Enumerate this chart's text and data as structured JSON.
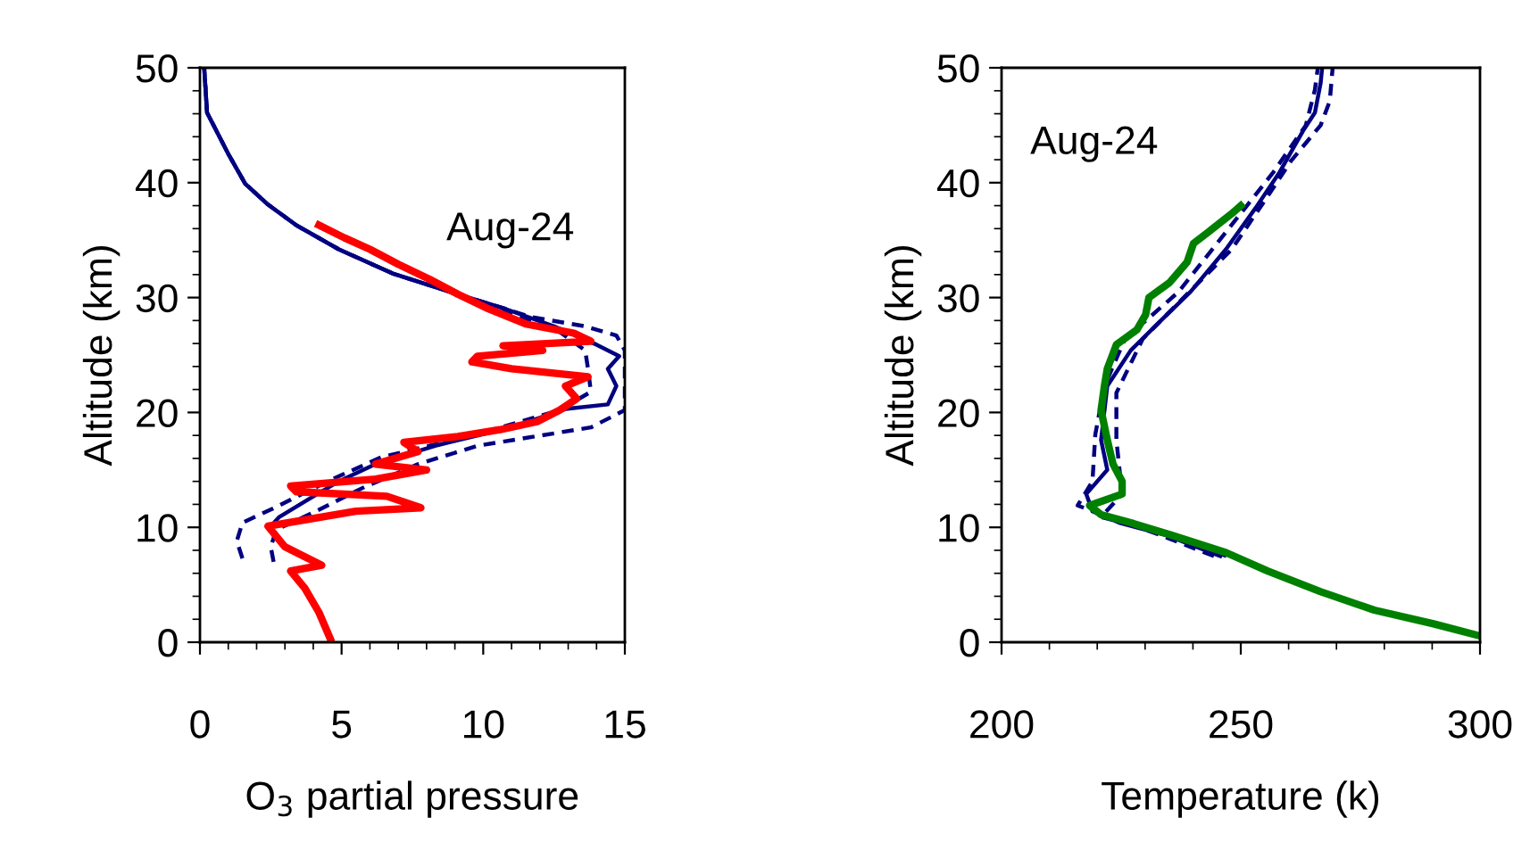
{
  "chart_data": [
    {
      "type": "line",
      "xlabel": "O$_{3}$ partial pressure",
      "ylabel": "Altitude (km)",
      "annotations": [
        "Aug-24"
      ],
      "xlim": [
        0,
        15
      ],
      "xticks": [
        0,
        5,
        10,
        15
      ],
      "ylim": [
        0,
        50
      ],
      "yticks": [
        0,
        10,
        20,
        30,
        40,
        50
      ],
      "grid": false,
      "series": [
        {
          "color": "#000080",
          "line_style": "dashed",
          "x": [
            2.6,
            2.5,
            2.7,
            4.1,
            5.8,
            7.7,
            9.8,
            13.8,
            15.0,
            15.0,
            14.7,
            13.6,
            11.7,
            10.8,
            8.7,
            6.8,
            4.9,
            3.4,
            2.4,
            1.6,
            1.0,
            0.25,
            0.15
          ],
          "values": [
            7.0,
            8.3,
            9.8,
            11.4,
            13.5,
            15.5,
            17.1,
            18.7,
            20.2,
            25.4,
            26.7,
            27.5,
            28.3,
            29.0,
            30.6,
            32.1,
            34.2,
            36.3,
            38.1,
            39.9,
            42.5,
            46.1,
            50
          ]
        },
        {
          "color": "#000080",
          "line_style": "dashed",
          "x": [
            1.5,
            1.3,
            1.5,
            2.8,
            4.5,
            6.4,
            9.8,
            12.7,
            13.8,
            13.7,
            13.6,
            12.7,
            11.0,
            8.7,
            6.8,
            4.9,
            3.4,
            2.4,
            1.6,
            1.0,
            0.25,
            0.15
          ],
          "values": [
            7.3,
            8.8,
            10.4,
            11.9,
            14.0,
            16.1,
            18.1,
            20.2,
            21.8,
            23.8,
            25.4,
            27.0,
            28.5,
            30.6,
            32.1,
            34.2,
            36.3,
            38.1,
            39.9,
            42.5,
            46.1,
            50
          ]
        },
        {
          "color": "#000080",
          "line_style": "solid",
          "x": [
            2.5,
            2.8,
            3.8,
            4.9,
            6.2,
            8.3,
            11.0,
            12.9,
            14.4,
            14.7,
            14.4,
            14.8,
            14.0,
            12.5,
            10.8,
            8.7,
            6.8,
            4.9,
            3.4,
            2.4,
            1.6,
            1.0,
            0.25,
            0.15
          ],
          "values": [
            10.1,
            10.9,
            12.4,
            14.0,
            15.5,
            17.1,
            18.7,
            20.3,
            20.7,
            22.3,
            23.8,
            24.9,
            25.9,
            27.5,
            29.0,
            30.6,
            32.1,
            34.2,
            36.3,
            38.1,
            39.9,
            42.5,
            46.1,
            50
          ]
        },
        {
          "color": "#ff0000",
          "line_style": "solid",
          "x": [
            4.6,
            4.2,
            3.7,
            3.2,
            4.3,
            3.0,
            2.4,
            5.5,
            7.8,
            6.6,
            3.4,
            3.2,
            6.2,
            8.0,
            6.2,
            7.7,
            7.2,
            9.1,
            10.6,
            11.9,
            12.7,
            13.3,
            12.9,
            13.7,
            11.0,
            9.6,
            9.8,
            12.1,
            10.7,
            13.8,
            13.2,
            11.5,
            10.2,
            9.1,
            8.1,
            7.0,
            6.0,
            5.1,
            4.2
          ],
          "values": [
            0.3,
            2.6,
            4.7,
            6.2,
            6.7,
            8.3,
            10.1,
            11.4,
            11.7,
            12.7,
            13.1,
            13.6,
            14.2,
            15.0,
            15.5,
            16.6,
            17.4,
            17.9,
            18.5,
            19.2,
            20.2,
            21.2,
            22.3,
            23.1,
            23.8,
            24.4,
            24.9,
            25.4,
            25.8,
            26.2,
            26.9,
            27.7,
            29.0,
            30.3,
            31.6,
            32.9,
            34.2,
            35.2,
            36.3
          ]
        }
      ]
    },
    {
      "type": "line",
      "xlabel": "Temperature (k)",
      "ylabel": "Altitude (km)",
      "annotations": [
        "Aug-24"
      ],
      "xlim": [
        200,
        300
      ],
      "xticks": [
        200,
        250,
        300
      ],
      "ylim": [
        0,
        50
      ],
      "yticks": [
        0,
        10,
        20,
        30,
        40,
        50
      ],
      "grid": false,
      "series": [
        {
          "color": "#000080",
          "line_style": "dashed",
          "x": [
            247.0,
            235.7,
            220.8,
            225.2,
            224.0,
            224.0,
            229.5,
            235.7,
            248.1,
            255.6,
            260.5,
            266.7,
            268.6,
            269.2
          ],
          "values": [
            7.5,
            9.3,
            10.9,
            12.9,
            17.6,
            21.7,
            26.4,
            29.0,
            34.2,
            38.8,
            41.9,
            45.0,
            47.1,
            50
          ]
        },
        {
          "color": "#000080",
          "line_style": "dashed",
          "x": [
            244.4,
            233.3,
            215.9,
            219.0,
            219.6,
            221.5,
            225.8,
            237.0,
            246.9,
            256.8,
            263.6,
            265.5,
            266.1
          ],
          "values": [
            7.5,
            9.3,
            11.9,
            14.0,
            18.1,
            22.3,
            26.4,
            30.5,
            35.7,
            40.9,
            45.0,
            48.1,
            50
          ]
        },
        {
          "color": "#000080",
          "line_style": "solid",
          "x": [
            245.7,
            234.5,
            224.6,
            219.0,
            217.7,
            222.1,
            220.8,
            222.1,
            227.0,
            233.3,
            239.5,
            246.9,
            253.1,
            258.1,
            263.0,
            265.5,
            266.7,
            267.0
          ],
          "values": [
            7.5,
            9.3,
            10.4,
            11.4,
            12.9,
            15.0,
            17.6,
            22.3,
            25.4,
            28.0,
            30.5,
            34.2,
            37.8,
            40.9,
            44.5,
            46.1,
            48.7,
            50
          ]
        },
        {
          "color": "#008000",
          "line_style": "solid",
          "x": [
            299.5,
            290.3,
            277.9,
            266.7,
            255.6,
            246.9,
            235.7,
            227.0,
            220.8,
            218.4,
            225.2,
            225.2,
            223.3,
            222.1,
            220.8,
            221.5,
            222.1,
            224.0,
            228.3,
            230.1,
            230.8,
            235.1,
            238.8,
            240.1,
            243.2,
            248.1,
            250.0
          ],
          "values": [
            0.6,
            1.6,
            2.8,
            4.4,
            6.2,
            7.8,
            9.3,
            10.4,
            11.1,
            11.9,
            12.9,
            14.0,
            15.5,
            17.6,
            20.2,
            22.3,
            23.8,
            25.9,
            27.2,
            28.5,
            30.0,
            31.3,
            33.1,
            34.7,
            35.7,
            37.3,
            38.0
          ]
        }
      ]
    }
  ]
}
